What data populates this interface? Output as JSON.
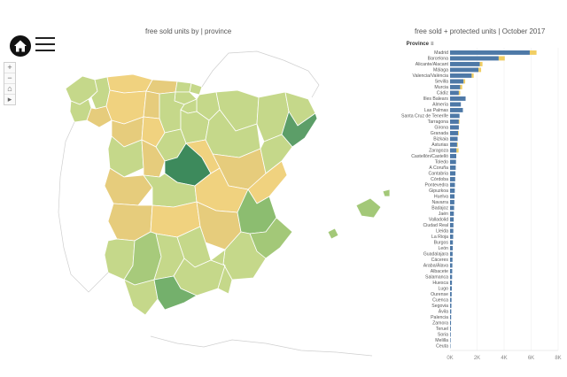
{
  "titles": {
    "map": "free sold units by  |  province",
    "bar": "free sold + protected units | October 2017"
  },
  "controls": {
    "zoom_in": "+",
    "zoom_out": "−",
    "home": "⌂",
    "expand": "▸"
  },
  "colors": {
    "free_sold": "#4e79a7",
    "protected": "#f1ce63",
    "madrid": "#3d8a5c",
    "barcelona": "#5c9e68",
    "valencia": "#8cbd70",
    "alicante": "#a3c878",
    "sevilla": "#a7ca7b",
    "malaga": "#74b06c",
    "light_green": "#c5d88a",
    "yellow": "#f0d27f",
    "tan": "#e6cc7c"
  },
  "chart_data": {
    "type": "bar",
    "title": "free sold + protected units | October 2017",
    "legend_label": "Province",
    "categories": [
      "Madrid",
      "Barcelona",
      "Alicante/Alacant",
      "Málaga",
      "Valencia/València",
      "Sevilla",
      "Murcia",
      "Cádiz",
      "Illes Balears",
      "Almería",
      "Las Palmas",
      "Santa Cruz de Tenerife",
      "Tarragona",
      "Girona",
      "Granada",
      "Bizkaia",
      "Asturias",
      "Zaragoza",
      "Castellón/Castelló",
      "Toledo",
      "A Coruña",
      "Cantabria",
      "Córdoba",
      "Pontevedra",
      "Gipuzkoa",
      "Huelva",
      "Navarra",
      "Badajoz",
      "Jaén",
      "Valladolid",
      "Ciudad Real",
      "Lleida",
      "La Rioja",
      "Burgos",
      "León",
      "Guadalajara",
      "Cáceres",
      "Araba/Álava",
      "Albacete",
      "Salamanca",
      "Huesca",
      "Lugo",
      "Ourense",
      "Cuenca",
      "Segovia",
      "Ávila",
      "Palencia",
      "Zamora",
      "Teruel",
      "Soria",
      "Melilla",
      "Ceuta"
    ],
    "series": [
      {
        "name": "free sold",
        "values": [
          5900,
          3600,
          2200,
          2100,
          1600,
          1000,
          750,
          650,
          1150,
          800,
          950,
          700,
          650,
          650,
          600,
          560,
          520,
          480,
          460,
          440,
          420,
          400,
          380,
          360,
          350,
          330,
          320,
          300,
          280,
          270,
          250,
          240,
          230,
          210,
          200,
          190,
          180,
          170,
          160,
          150,
          140,
          130,
          120,
          110,
          100,
          90,
          80,
          70,
          60,
          50,
          40,
          30
        ]
      },
      {
        "name": "protected",
        "values": [
          500,
          450,
          200,
          200,
          150,
          120,
          150,
          100,
          0,
          0,
          0,
          0,
          50,
          0,
          50,
          0,
          50,
          150,
          0,
          0,
          0,
          0,
          0,
          0,
          0,
          0,
          0,
          0,
          0,
          0,
          0,
          0,
          0,
          0,
          0,
          0,
          0,
          0,
          0,
          0,
          0,
          0,
          0,
          0,
          0,
          0,
          0,
          0,
          0,
          0,
          0,
          0
        ]
      }
    ],
    "xlim": [
      0,
      8000
    ],
    "x_ticks": [
      "0K",
      "2K",
      "4K",
      "6K",
      "8K"
    ]
  }
}
